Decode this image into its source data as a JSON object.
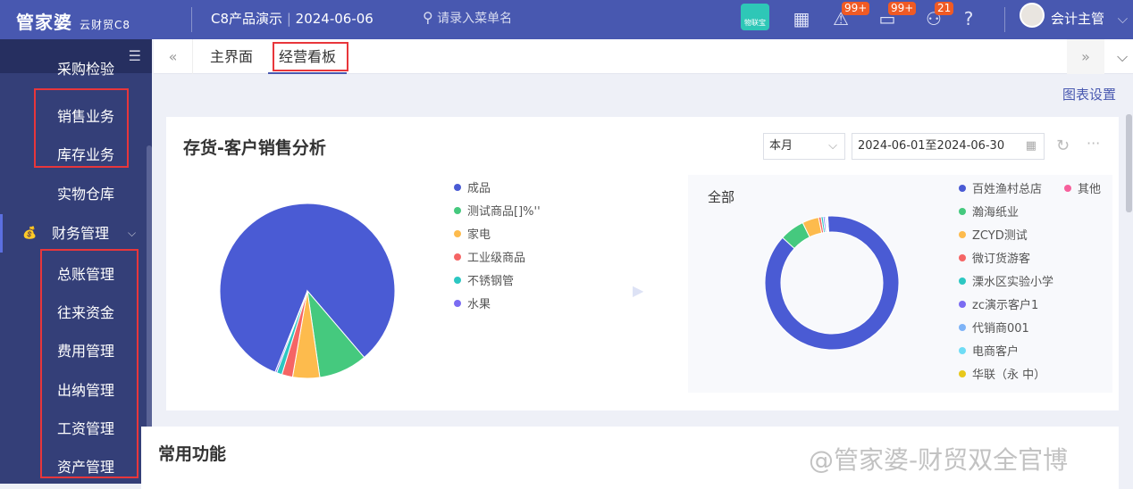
{
  "header": {
    "logo": "管家婆",
    "logo_sub": "云财贸C8",
    "company": "C8产品演示",
    "date": "2024-06-06",
    "search_placeholder": "请录入菜单名",
    "iot_label": "物联宝",
    "alerts_badge": "99+",
    "messages_badge": "99+",
    "approvals_badge": "21",
    "user": "会计主管"
  },
  "sidebar": {
    "items": [
      {
        "label": "采购检验"
      },
      {
        "label": "销售业务"
      },
      {
        "label": "库存业务"
      },
      {
        "label": "实物仓库"
      },
      {
        "label": "财务管理"
      },
      {
        "label": "总账管理"
      },
      {
        "label": "往来资金"
      },
      {
        "label": "费用管理"
      },
      {
        "label": "出纳管理"
      },
      {
        "label": "工资管理"
      },
      {
        "label": "资产管理"
      }
    ]
  },
  "tabs": [
    {
      "label": "主界面"
    },
    {
      "label": "经营看板",
      "active": true
    }
  ],
  "chart_settings": "图表设置",
  "card": {
    "title": "存货-客户销售分析",
    "period": "本月",
    "date_range": "2024-06-01至2024-06-30",
    "right_panel_title": "全部"
  },
  "card2": {
    "title": "常用功能"
  },
  "watermark": "@管家婆-财贸双全官博",
  "chart_data": [
    {
      "type": "pie",
      "legend_position": "right",
      "series": [
        {
          "name": "成品",
          "value": 83,
          "color": "#4a5bd4"
        },
        {
          "name": "测试商品[]%''",
          "value": 9,
          "color": "#45c97e"
        },
        {
          "name": "家电",
          "value": 5,
          "color": "#fdbb4d"
        },
        {
          "name": "工业级商品",
          "value": 2,
          "color": "#f56565"
        },
        {
          "name": "不锈钢管",
          "value": 1,
          "color": "#2cc7c2"
        },
        {
          "name": "水果",
          "value": 0.3,
          "color": "#7b6cf2"
        }
      ]
    },
    {
      "type": "pie",
      "subtype": "donut",
      "legend_position": "right",
      "series": [
        {
          "name": "百姓渔村总店",
          "value": 88,
          "color": "#4a5bd4"
        },
        {
          "name": "瀚海纸业",
          "value": 6,
          "color": "#45c97e"
        },
        {
          "name": "ZCYD测试",
          "value": 4,
          "color": "#fdbb4d"
        },
        {
          "name": "微订货游客",
          "value": 0.6,
          "color": "#f56565"
        },
        {
          "name": "溧水区实验小学",
          "value": 0.5,
          "color": "#2cc7c2"
        },
        {
          "name": "zc演示客户1",
          "value": 0.4,
          "color": "#7b6cf2"
        },
        {
          "name": "代销商001",
          "value": 0.3,
          "color": "#7eb3f7"
        },
        {
          "name": "电商客户",
          "value": 0.2,
          "color": "#6fdcf5"
        },
        {
          "name": "华联（永 中）",
          "value": 0.1,
          "color": "#e8c81c"
        },
        {
          "name": "其他",
          "value": 0.1,
          "color": "#f7609c"
        }
      ]
    }
  ]
}
